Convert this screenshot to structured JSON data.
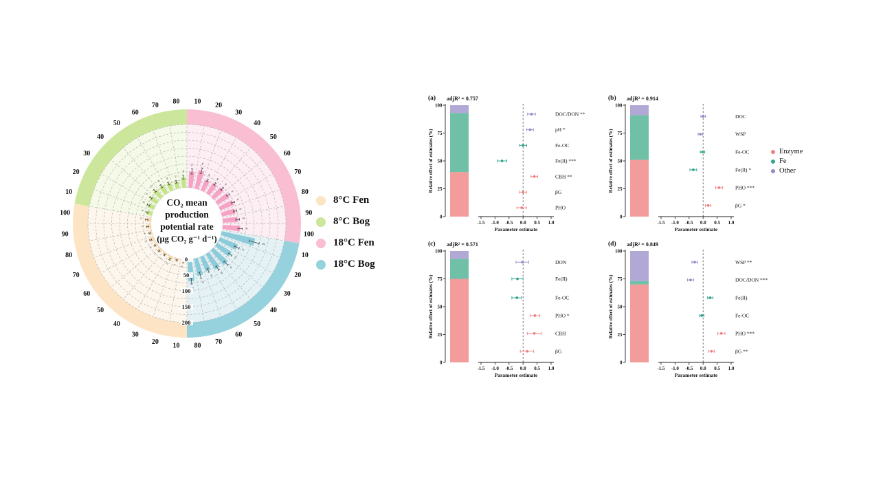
{
  "colors": {
    "enzyme": "#F08080",
    "fe": "#2FA38C",
    "other": "#9089C9",
    "stack_enzyme": "#F29C9C",
    "stack_fe": "#6FC0A7",
    "stack_other": "#B1A8D5",
    "grid": "#B5B5B5",
    "axis": "#222222"
  },
  "chart_data": [
    {
      "type": "polar_bar",
      "id": "co2-polar",
      "center_title_lines": [
        "CO₂ mean",
        "production",
        "potential rate",
        "(μg CO₂ g⁻¹ d⁻¹)"
      ],
      "radial_axis": {
        "min": 0,
        "max": 200,
        "ticks": [
          0,
          50,
          100,
          150,
          200
        ],
        "grid_step": 25
      },
      "angular_unit_deg": 1,
      "groups": [
        {
          "name": "18°C Fen",
          "start_deg": 0,
          "span_deg": 100,
          "ring_color": "#F9BED2",
          "fill_color": "#FDEEF4",
          "bar_color": "#F6A3C5",
          "positions": [
            10,
            20,
            30,
            40,
            50,
            60,
            70,
            80,
            90,
            100
          ],
          "values": [
            52,
            60,
            38,
            40,
            43,
            45,
            47,
            44,
            48,
            56
          ],
          "errors": [
            8,
            9,
            4,
            4,
            5,
            5,
            5,
            5,
            6,
            7
          ]
        },
        {
          "name": "18°C Bog",
          "start_deg": 100,
          "span_deg": 80,
          "ring_color": "#96D2DD",
          "fill_color": "#E4F2F5",
          "bar_color": "#8CCBD9",
          "positions": [
            10,
            20,
            30,
            40,
            50,
            60,
            70,
            80
          ],
          "values": [
            108,
            62,
            55,
            63,
            58,
            50,
            56,
            70
          ],
          "errors": [
            16,
            8,
            6,
            8,
            7,
            6,
            10,
            9
          ]
        },
        {
          "name": "8°C Fen",
          "start_deg": 180,
          "span_deg": 100,
          "ring_color": "#FCE4C5",
          "fill_color": "#FDF6EC",
          "bar_color": "#F8D9AB",
          "positions": [
            10,
            20,
            30,
            40,
            50,
            60,
            70,
            80,
            90,
            100
          ],
          "values": [
            10,
            8,
            12,
            9,
            11,
            10,
            13,
            9,
            12,
            15
          ],
          "errors": [
            2,
            2,
            3,
            2,
            2,
            2,
            3,
            2,
            3,
            4
          ]
        },
        {
          "name": "8°C Bog",
          "start_deg": 280,
          "span_deg": 80,
          "ring_color": "#CCE79B",
          "fill_color": "#F4FAE7",
          "bar_color": "#C4E38A",
          "positions": [
            10,
            20,
            30,
            40,
            50,
            60,
            70,
            80
          ],
          "values": [
            18,
            22,
            27,
            32,
            30,
            26,
            23,
            34
          ],
          "errors": [
            3,
            4,
            4,
            5,
            5,
            4,
            4,
            6
          ]
        }
      ],
      "legend": [
        {
          "label": "8°C Fen",
          "color": "#FCE4C5"
        },
        {
          "label": "8°C Bog",
          "color": "#CCE79B"
        },
        {
          "label": "18°C Fen",
          "color": "#F9BED2"
        },
        {
          "label": "18°C Bog",
          "color": "#96D2DD"
        }
      ]
    },
    {
      "type": "stacked_bar_forest",
      "letter": "(a)",
      "adj_r2_label": "adjR² = 0.757",
      "y_axis": {
        "label": "Relative effect of estimates (%)",
        "ticks": [
          0,
          25,
          50,
          75,
          100
        ],
        "max": 100
      },
      "x_axis": {
        "label": "Parameter estimate",
        "min": -1.5,
        "max": 1.0,
        "ticks": [
          -1.5,
          -1.0,
          -0.5,
          0.0,
          0.5,
          1.0
        ],
        "tick_labels": [
          "-1.5",
          "-1.0",
          "-0.5",
          "0.0",
          "0.5",
          "1.0"
        ]
      },
      "stack": [
        {
          "group": "Enzyme",
          "value": 40
        },
        {
          "group": "Fe",
          "value": 53
        },
        {
          "group": "Other",
          "value": 7
        }
      ],
      "rows": [
        {
          "label": "DOC/DON **",
          "group": "Other",
          "estimate": 0.3,
          "ci_low": 0.16,
          "ci_high": 0.44,
          "y_pct": 92
        },
        {
          "label": "pH *",
          "group": "Other",
          "estimate": 0.25,
          "ci_low": 0.13,
          "ci_high": 0.37,
          "y_pct": 78
        },
        {
          "label": "Fe-OC",
          "group": "Fe",
          "estimate": 0.0,
          "ci_low": -0.13,
          "ci_high": 0.13,
          "y_pct": 64
        },
        {
          "label": "Fe(II) ***",
          "group": "Fe",
          "estimate": -0.75,
          "ci_low": -0.92,
          "ci_high": -0.58,
          "y_pct": 50
        },
        {
          "label": "CBH **",
          "group": "Enzyme",
          "estimate": 0.4,
          "ci_low": 0.28,
          "ci_high": 0.52,
          "y_pct": 36
        },
        {
          "label": "βG",
          "group": "Enzyme",
          "estimate": 0.0,
          "ci_low": -0.13,
          "ci_high": 0.13,
          "y_pct": 22
        },
        {
          "label": "PHO",
          "group": "Enzyme",
          "estimate": -0.05,
          "ci_low": -0.22,
          "ci_high": 0.12,
          "y_pct": 8
        }
      ]
    },
    {
      "type": "stacked_bar_forest",
      "letter": "(b)",
      "adj_r2_label": "adjR² = 0.914",
      "y_axis": {
        "label": "Relative effect of estimates (%)",
        "ticks": [
          0,
          25,
          50,
          75,
          100
        ],
        "max": 100
      },
      "x_axis": {
        "label": "Parameter estimate",
        "min": -1.5,
        "max": 1.0,
        "ticks": [
          -1.5,
          -1.0,
          -0.5,
          0.0,
          0.5,
          1.0
        ],
        "tick_labels": [
          "-1.5",
          "-1.0",
          "-0.5",
          "0.0",
          "0.5",
          "1.0"
        ]
      },
      "stack": [
        {
          "group": "Enzyme",
          "value": 51
        },
        {
          "group": "Fe",
          "value": 40
        },
        {
          "group": "Other",
          "value": 9
        }
      ],
      "rows": [
        {
          "label": "DOC",
          "group": "Other",
          "estimate": 0.0,
          "ci_low": -0.08,
          "ci_high": 0.08,
          "y_pct": 90
        },
        {
          "label": "WSP",
          "group": "Other",
          "estimate": -0.1,
          "ci_low": -0.18,
          "ci_high": -0.02,
          "y_pct": 74
        },
        {
          "label": "Fe-OC",
          "group": "Fe",
          "estimate": -0.02,
          "ci_low": -0.1,
          "ci_high": 0.06,
          "y_pct": 58
        },
        {
          "label": "Fe(II) *",
          "group": "Fe",
          "estimate": -0.35,
          "ci_low": -0.47,
          "ci_high": -0.23,
          "y_pct": 42
        },
        {
          "label": "PHO ***",
          "group": "Enzyme",
          "estimate": 0.57,
          "ci_low": 0.45,
          "ci_high": 0.7,
          "y_pct": 26
        },
        {
          "label": "βG *",
          "group": "Enzyme",
          "estimate": 0.18,
          "ci_low": 0.08,
          "ci_high": 0.28,
          "y_pct": 10
        }
      ]
    },
    {
      "type": "stacked_bar_forest",
      "letter": "(c)",
      "adj_r2_label": "adjR² = 0.571",
      "y_axis": {
        "label": "Relative effect of estimates (%)",
        "ticks": [
          0,
          25,
          50,
          75,
          100
        ],
        "max": 100
      },
      "x_axis": {
        "label": "Parameter estimate",
        "min": -1.5,
        "max": 1.0,
        "ticks": [
          -1.5,
          -1.0,
          -0.5,
          0.0,
          0.5,
          1.0
        ],
        "tick_labels": [
          "-1.5",
          "-1.0",
          "-0.5",
          "0.0",
          "0.5",
          "1.0"
        ]
      },
      "stack": [
        {
          "group": "Enzyme",
          "value": 75
        },
        {
          "group": "Fe",
          "value": 18
        },
        {
          "group": "Other",
          "value": 7
        }
      ],
      "rows": [
        {
          "label": "DON",
          "group": "Other",
          "estimate": -0.02,
          "ci_low": -0.25,
          "ci_high": 0.2,
          "y_pct": 90
        },
        {
          "label": "Fe(II)",
          "group": "Fe",
          "estimate": -0.2,
          "ci_low": -0.4,
          "ci_high": 0.0,
          "y_pct": 75
        },
        {
          "label": "Fe-OC",
          "group": "Fe",
          "estimate": -0.22,
          "ci_low": -0.4,
          "ci_high": -0.05,
          "y_pct": 58
        },
        {
          "label": "PHO *",
          "group": "Enzyme",
          "estimate": 0.42,
          "ci_low": 0.25,
          "ci_high": 0.6,
          "y_pct": 42
        },
        {
          "label": "CBH",
          "group": "Enzyme",
          "estimate": 0.4,
          "ci_low": 0.15,
          "ci_high": 0.65,
          "y_pct": 26
        },
        {
          "label": "βG",
          "group": "Enzyme",
          "estimate": 0.15,
          "ci_low": -0.1,
          "ci_high": 0.38,
          "y_pct": 10
        }
      ]
    },
    {
      "type": "stacked_bar_forest",
      "letter": "(d)",
      "adj_r2_label": "adjR² = 0.849",
      "y_axis": {
        "label": "Relative effect of estimates (%)",
        "ticks": [
          0,
          25,
          50,
          75,
          100
        ],
        "max": 100
      },
      "x_axis": {
        "label": "Parameter estimate",
        "min": -1.5,
        "max": 1.0,
        "ticks": [
          -1.5,
          -1.0,
          -0.5,
          0.0,
          0.5,
          1.0
        ],
        "tick_labels": [
          "-1.5",
          "-1.0",
          "-0.5",
          "0.0",
          "0.5",
          "1.0"
        ]
      },
      "stack": [
        {
          "group": "Enzyme",
          "value": 70
        },
        {
          "group": "Fe",
          "value": 3
        },
        {
          "group": "Other",
          "value": 27
        }
      ],
      "rows": [
        {
          "label": "WSP **",
          "group": "Other",
          "estimate": -0.3,
          "ci_low": -0.4,
          "ci_high": -0.2,
          "y_pct": 90
        },
        {
          "label": "DOC/DON ***",
          "group": "Other",
          "estimate": -0.45,
          "ci_low": -0.56,
          "ci_high": -0.34,
          "y_pct": 74
        },
        {
          "label": "Fe(II)",
          "group": "Fe",
          "estimate": 0.25,
          "ci_low": 0.15,
          "ci_high": 0.35,
          "y_pct": 58
        },
        {
          "label": "Fe-OC",
          "group": "Fe",
          "estimate": -0.05,
          "ci_low": -0.13,
          "ci_high": 0.03,
          "y_pct": 42
        },
        {
          "label": "PHO ***",
          "group": "Enzyme",
          "estimate": 0.65,
          "ci_low": 0.52,
          "ci_high": 0.78,
          "y_pct": 26
        },
        {
          "label": "βG **",
          "group": "Enzyme",
          "estimate": 0.3,
          "ci_low": 0.2,
          "ci_high": 0.4,
          "y_pct": 10
        }
      ]
    }
  ],
  "group_legend": {
    "items": [
      {
        "label": "Enzyme",
        "group": "Enzyme"
      },
      {
        "label": "Fe",
        "group": "Fe"
      },
      {
        "label": "Other",
        "group": "Other"
      }
    ]
  }
}
